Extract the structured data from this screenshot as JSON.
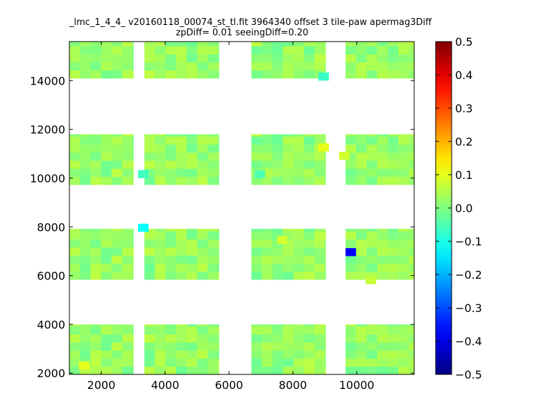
{
  "chart_data": {
    "type": "heatmap",
    "title": "_lmc_1_4_4_ v20160118_00074_st_tl.fit 3964340 offset 3 tile-paw apermag3Diff",
    "subtitle": "zpDiff= 0.01 seeingDiff=0.20",
    "xlabel": "",
    "ylabel": "",
    "xlim": [
      1000,
      11800
    ],
    "ylim": [
      1950,
      15600
    ],
    "xticks": [
      2000,
      4000,
      6000,
      8000,
      10000
    ],
    "yticks": [
      2000,
      4000,
      6000,
      8000,
      10000,
      12000,
      14000
    ],
    "colorbar": {
      "colormap": "jet",
      "min": -0.5,
      "max": 0.5,
      "ticks": [
        "0.5",
        "0.4",
        "0.3",
        "0.2",
        "0.1",
        "0.0",
        "−0.1",
        "−0.2",
        "−0.3",
        "−0.4",
        "−0.5"
      ]
    },
    "cell_size": [
      330,
      330
    ],
    "column_blocks": [
      [
        1000,
        3000
      ],
      [
        3350,
        5680
      ],
      [
        6700,
        9020
      ],
      [
        9650,
        11800
      ]
    ],
    "row_blocks": [
      [
        14100,
        15600
      ],
      [
        9740,
        11800
      ],
      [
        5850,
        7920
      ],
      [
        1950,
        4000
      ]
    ],
    "grid": false,
    "background_value": 0.02,
    "anomalies": [
      {
        "x": 3150,
        "y": 10000,
        "value": -0.06
      },
      {
        "x": 3150,
        "y": 7800,
        "value": -0.12
      },
      {
        "x": 7500,
        "y": 7300,
        "value": 0.08
      },
      {
        "x": 9650,
        "y": 6800,
        "value": -0.38
      },
      {
        "x": 8800,
        "y": 14000,
        "value": -0.07
      },
      {
        "x": 8800,
        "y": 11100,
        "value": 0.1
      },
      {
        "x": 9450,
        "y": 10750,
        "value": 0.08
      },
      {
        "x": 6800,
        "y": 10000,
        "value": -0.05
      },
      {
        "x": 10280,
        "y": 5650,
        "value": 0.07
      },
      {
        "x": 1300,
        "y": 2150,
        "value": 0.1
      }
    ]
  }
}
